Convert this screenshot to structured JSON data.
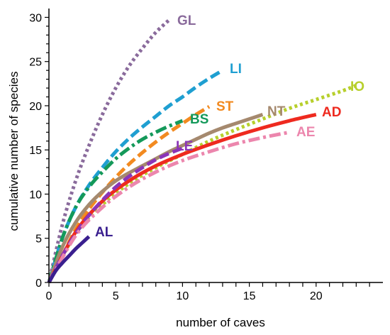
{
  "chart_data": {
    "type": "line",
    "xlabel": "number of caves",
    "ylabel": "cumulative number of species",
    "xlim": [
      0,
      25
    ],
    "ylim": [
      0,
      31
    ],
    "x_ticks": [
      0,
      5,
      10,
      15,
      20
    ],
    "y_ticks": [
      0,
      5,
      10,
      15,
      20,
      25,
      30
    ],
    "grid": false,
    "legend": "inline labels at line ends",
    "series": [
      {
        "name": "GL",
        "color": "#8a6b9c",
        "dash": "dotted",
        "x": [
          0,
          1,
          2,
          3,
          4,
          5,
          6,
          7,
          8,
          9
        ],
        "y": [
          0,
          6.5,
          11.5,
          15.5,
          19,
          22,
          24.5,
          26.5,
          28.3,
          29.7
        ]
      },
      {
        "name": "LI",
        "color": "#1f9fd1",
        "dash": "dashed",
        "x": [
          0,
          1,
          2,
          3,
          4,
          5,
          6,
          7,
          8,
          9,
          10,
          11,
          12,
          13
        ],
        "y": [
          0,
          5,
          8.5,
          11,
          13,
          14.8,
          16.3,
          17.6,
          18.8,
          20,
          21,
          22.1,
          23.1,
          24
        ]
      },
      {
        "name": "ST",
        "color": "#f28a20",
        "dash": "dashed",
        "x": [
          0,
          1,
          2,
          3,
          4,
          5,
          6,
          7,
          8,
          9,
          10,
          11,
          12
        ],
        "y": [
          0,
          3,
          6,
          8.3,
          10.2,
          11.9,
          13.4,
          14.7,
          15.9,
          17,
          18,
          19,
          19.9
        ]
      },
      {
        "name": "BS",
        "color": "#14995a",
        "dash": "dashdot",
        "x": [
          0,
          1,
          2,
          3,
          4,
          5,
          6,
          7,
          8,
          9,
          10
        ],
        "y": [
          0,
          5,
          8.5,
          10.8,
          12.5,
          14,
          15.2,
          16.2,
          17,
          17.7,
          18.3
        ]
      },
      {
        "name": "NT",
        "color": "#a5896e",
        "dash": "solid",
        "x": [
          0,
          1,
          2,
          3,
          4,
          5,
          6,
          7,
          8,
          9,
          10,
          11,
          12,
          13,
          14,
          15,
          16
        ],
        "y": [
          0,
          4,
          6.8,
          8.8,
          10.3,
          11.5,
          12.4,
          13.2,
          14,
          14.8,
          15.5,
          16.2,
          16.9,
          17.5,
          18,
          18.5,
          19
        ]
      },
      {
        "name": "IO",
        "color": "#b7cf2c",
        "dash": "dotted",
        "x": [
          0,
          2,
          4,
          6,
          8,
          10,
          12,
          14,
          16,
          18,
          20,
          22,
          23
        ],
        "y": [
          0,
          5.5,
          8.8,
          11.2,
          13,
          14.5,
          16,
          17.3,
          18.5,
          19.7,
          20.7,
          21.7,
          22.3
        ]
      },
      {
        "name": "AD",
        "color": "#ee2a1f",
        "dash": "solid",
        "x": [
          0,
          2,
          4,
          6,
          8,
          10,
          12,
          14,
          16,
          18,
          20
        ],
        "y": [
          0,
          5.7,
          9.2,
          11.5,
          13.2,
          14.5,
          15.6,
          16.6,
          17.5,
          18.3,
          19
        ]
      },
      {
        "name": "LE",
        "color": "#8b35b8",
        "dash": "dashed",
        "x": [
          0,
          1,
          2,
          3,
          4,
          5,
          6,
          7,
          8,
          9,
          10
        ],
        "y": [
          0,
          3,
          5.5,
          7.6,
          9.3,
          10.8,
          12,
          13,
          13.9,
          14.6,
          15.2
        ]
      },
      {
        "name": "AE",
        "color": "#ec86ad",
        "dash": "dashdot",
        "x": [
          0,
          2,
          4,
          6,
          8,
          10,
          12,
          14,
          16,
          18
        ],
        "y": [
          0,
          5.3,
          8.5,
          10.8,
          12.5,
          13.8,
          14.8,
          15.7,
          16.4,
          17
        ]
      },
      {
        "name": "AL",
        "color": "#3a1f8f",
        "dash": "solid",
        "x": [
          0,
          0.5,
          1,
          1.5,
          2,
          2.5,
          3
        ],
        "y": [
          0,
          1.3,
          2.2,
          3,
          3.8,
          4.5,
          5.2
        ]
      }
    ]
  },
  "labels": {
    "GL": "GL",
    "LI": "LI",
    "ST": "ST",
    "BS": "BS",
    "NT": "NT",
    "IO": "IO",
    "AD": "AD",
    "LE": "LE",
    "AE": "AE",
    "AL": "AL"
  }
}
